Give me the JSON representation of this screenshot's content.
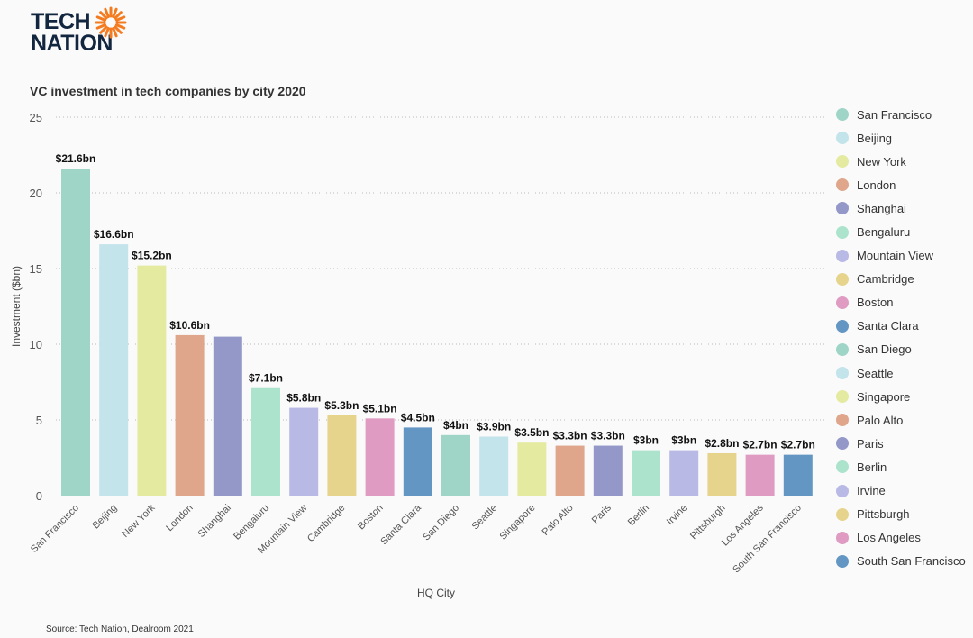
{
  "logo": {
    "text_line1": "TECH",
    "text_line2": "NATION",
    "color": "#13263f",
    "accent": "#f47b20"
  },
  "source": "Source: Tech Nation, Dealroom 2021",
  "chart_data": {
    "type": "bar",
    "title": "VC investment in tech companies by city 2020",
    "xlabel": "HQ City",
    "ylabel": "Investment ($bn)",
    "ylim": [
      0,
      25
    ],
    "yticks": [
      0,
      5,
      10,
      15,
      20,
      25
    ],
    "grid": "horizontal dotted",
    "legend": "right",
    "categories": [
      "San Francisco",
      "Beijing",
      "New York",
      "London",
      "Shanghai",
      "Bengaluru",
      "Mountain View",
      "Cambridge",
      "Boston",
      "Santa Clara",
      "San Diego",
      "Seattle",
      "Singapore",
      "Palo Alto",
      "Paris",
      "Berlin",
      "Irvine",
      "Pittsburgh",
      "Los Angeles",
      "South San Francisco"
    ],
    "values": [
      21.6,
      16.6,
      15.2,
      10.6,
      10.5,
      7.1,
      5.8,
      5.3,
      5.1,
      4.5,
      4,
      3.9,
      3.5,
      3.3,
      3.3,
      3,
      3,
      2.8,
      2.7,
      2.7
    ],
    "data_labels": [
      "$21.6bn",
      "$16.6bn",
      "$15.2bn",
      "$10.6bn",
      "",
      "$7.1bn",
      "$5.8bn",
      "$5.3bn",
      "$5.1bn",
      "$4.5bn",
      "$4bn",
      "$3.9bn",
      "$3.5bn",
      "$3.3bn",
      "$3.3bn",
      "$3bn",
      "$3bn",
      "$2.8bn",
      "$2.7bn",
      "$2.7bn"
    ],
    "colors": [
      "#9fd5c6",
      "#c3e4ea",
      "#e4eaa0",
      "#e0a68b",
      "#9398c8",
      "#abe3cc",
      "#b9b9e6",
      "#e6d48d",
      "#e09bc2",
      "#6496c4",
      "#9fd5c6",
      "#c3e4ea",
      "#e4eaa0",
      "#e0a68b",
      "#9398c8",
      "#abe3cc",
      "#b9b9e6",
      "#e6d48d",
      "#e09bc2",
      "#6496c4"
    ]
  }
}
